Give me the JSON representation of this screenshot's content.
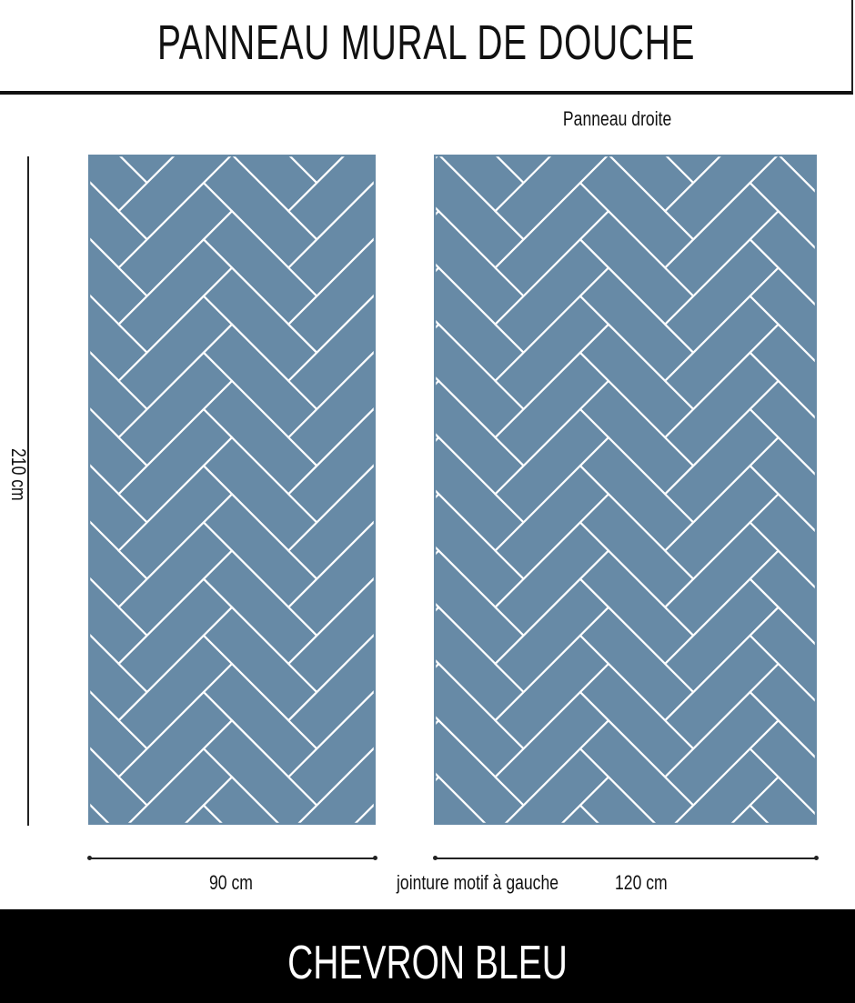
{
  "header": {
    "title": "PANNEAU MURAL DE DOUCHE"
  },
  "panels": {
    "right_caption": "Panneau droite",
    "left_width": "90 cm",
    "right_width": "120 cm",
    "right_note": "jointure motif à gauche",
    "height": "210 cm",
    "tile_color": "#678aa6",
    "grout_color": "#ffffff",
    "pattern": "herringbone"
  },
  "footer": {
    "title": "CHEVRON BLEU"
  }
}
